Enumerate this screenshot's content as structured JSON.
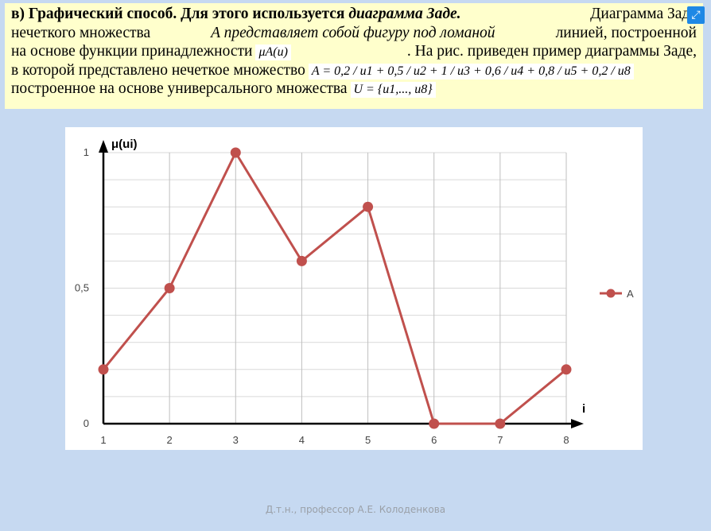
{
  "text": {
    "l1_bold": "в) Графический способ. Для этого используется ",
    "l1_bi": "диаграмма Заде.",
    "l1_rest": " Диаграмма Заде",
    "l2_a": "нечеткого множества ",
    "l2_i": "A представляет собой фигуру под ломаной",
    "l2_b": " линией, построенной",
    "l3_a": "на основе функции принадлежности",
    "l3_formula": "μA(u)",
    "l3_b": ". На рис. приведен пример диаграммы Заде,",
    "l4_a": "в которой представлено нечеткое множество",
    "l4_formula": "A = 0,2 / u1 + 0,5 / u2 + 1 / u3 + 0,6 / u4 + 0,8 / u5 + 0,2 / u8",
    "l5_a": "построенное на основе универсального множества",
    "l5_formula": "U = {u1,..., u8}"
  },
  "footer": "Д.т.н.,  профессор А.Е. Колоденкова",
  "icons": {
    "expand": "expand-icon"
  },
  "chart_data": {
    "type": "line",
    "x": [
      1,
      2,
      3,
      4,
      5,
      6,
      7,
      8
    ],
    "series": [
      {
        "name": "A",
        "values": [
          0.2,
          0.5,
          1,
          0.6,
          0.8,
          0,
          0,
          0.2
        ],
        "color": "#c0504d"
      }
    ],
    "ylabel": "μ(ui)",
    "xlabel": "i",
    "y_ticks": [
      "0",
      "0,5",
      "1"
    ],
    "x_ticks": [
      "1",
      "2",
      "3",
      "4",
      "5",
      "6",
      "7",
      "8"
    ],
    "ylim": [
      0,
      1
    ],
    "xlim": [
      1,
      8
    ],
    "grid": true,
    "legend": "right"
  }
}
